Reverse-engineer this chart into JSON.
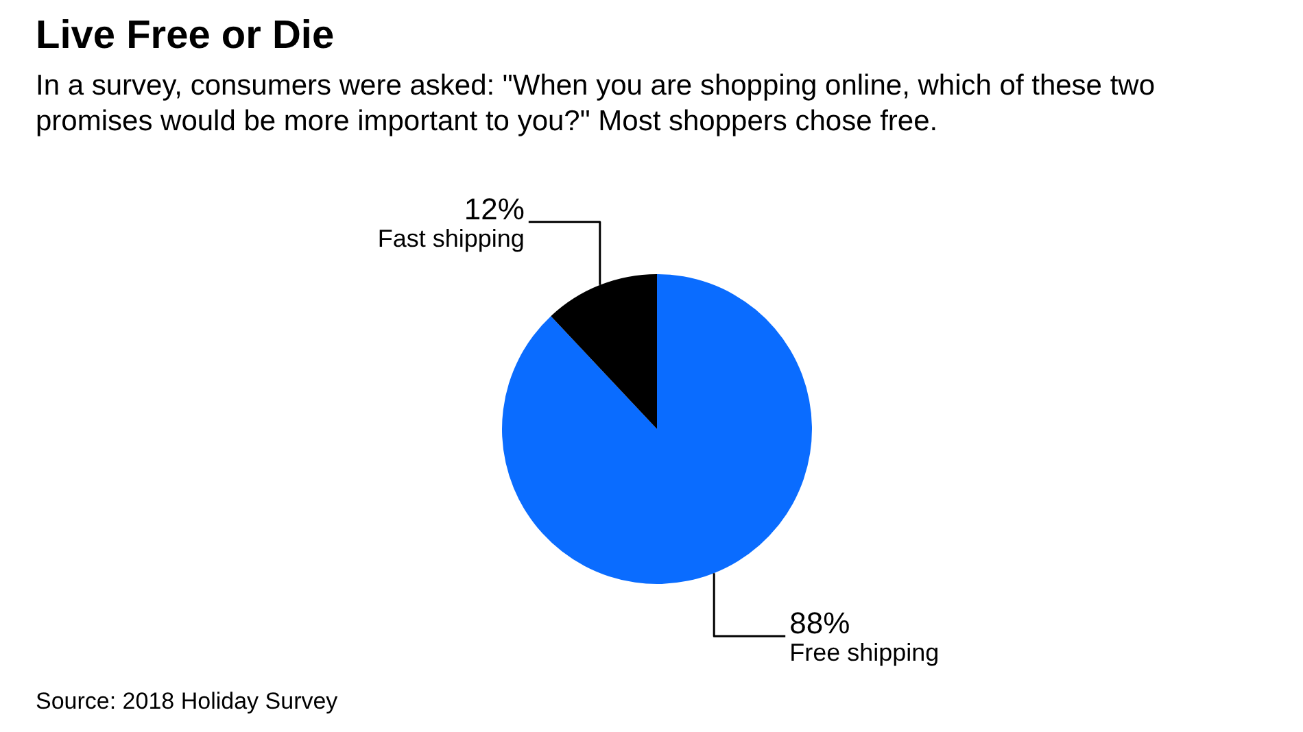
{
  "chart_data": {
    "type": "pie",
    "title": "Live Free or Die",
    "subtitle": "In a survey, consumers were asked: \"When you are shopping online, which of these two promises would be more important to you?\" Most shoppers chose free.",
    "categories": [
      "Free shipping",
      "Fast shipping"
    ],
    "values": [
      88,
      12
    ],
    "colors": [
      "#0a6cff",
      "#000000"
    ],
    "value_labels": [
      "88%",
      "12%"
    ],
    "annotations": [
      "Source: 2018 Holiday Survey"
    ]
  }
}
